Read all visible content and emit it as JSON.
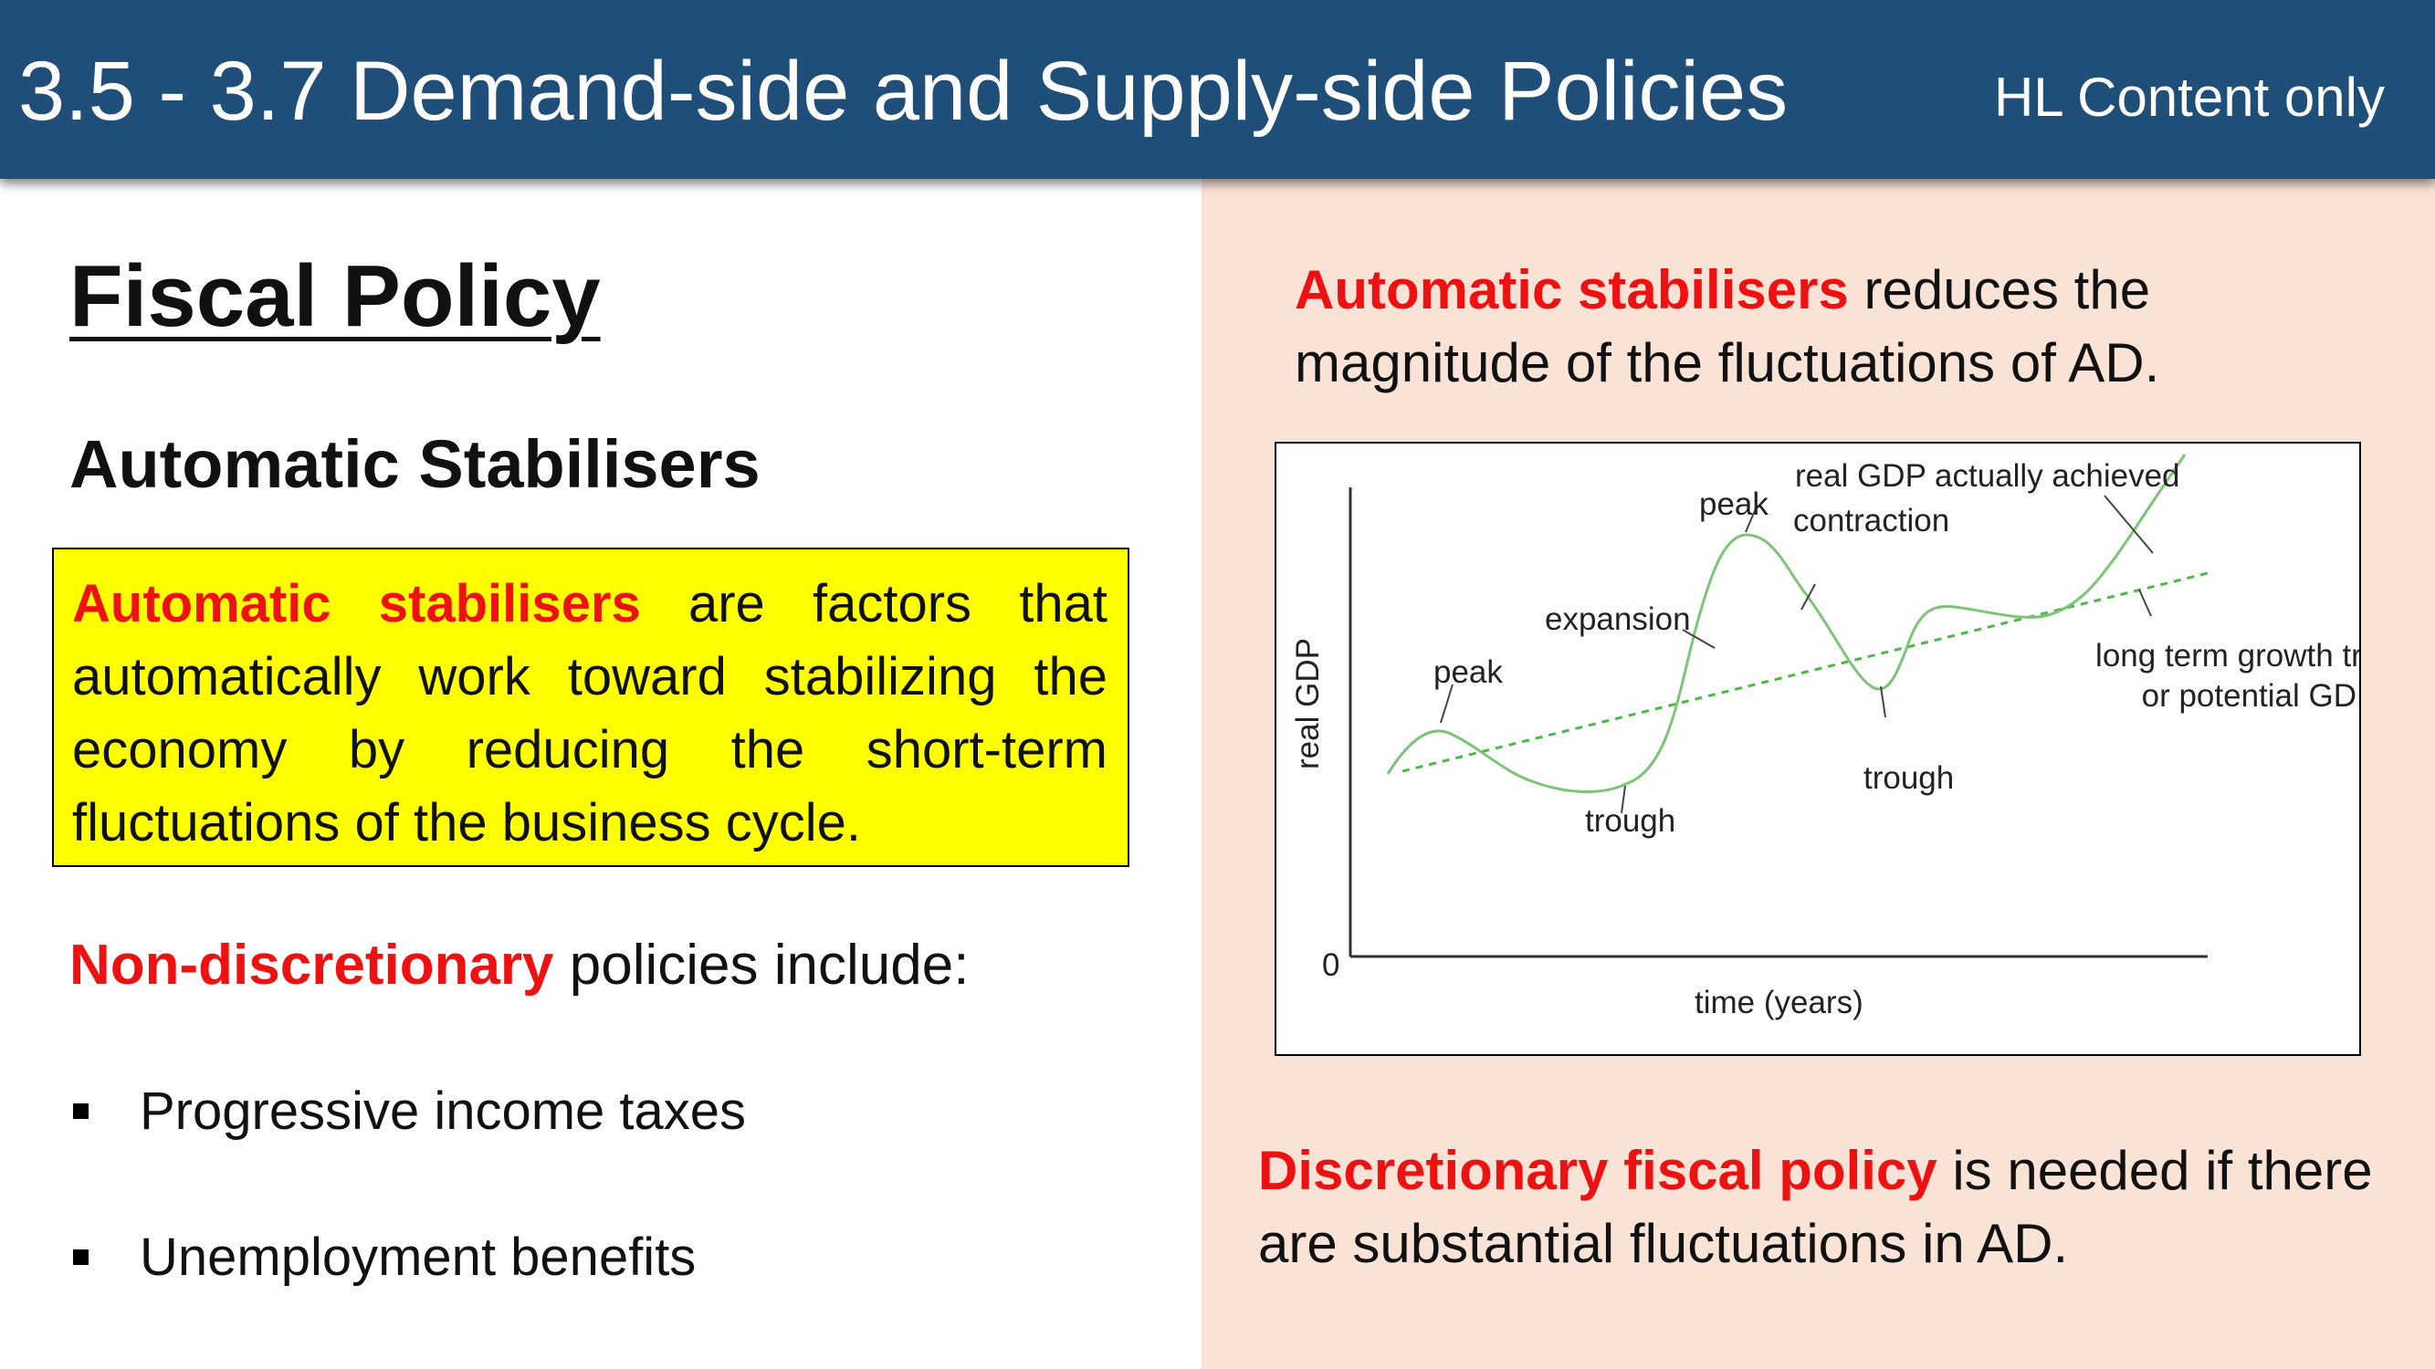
{
  "header": {
    "title": "3.5 - 3.7 Demand-side and Supply-side Policies",
    "note": "HL Content only"
  },
  "left": {
    "title": "Fiscal Policy",
    "subtitle": "Automatic Stabilisers",
    "definition": {
      "term": "Automatic stabilisers",
      "text": " are factors that automatically work toward stabilizing the economy by reducing the short-term fluctuations  of the business cycle."
    },
    "nondiscretionary": {
      "term": "Non-discretionary",
      "text": " policies include:"
    },
    "bullets": [
      "Progressive income taxes",
      "Unemployment benefits"
    ]
  },
  "right": {
    "top": {
      "term": "Automatic stabilisers",
      "text": " reduces the magnitude of the fluctuations of AD."
    },
    "bottom": {
      "term": "Discretionary fiscal policy",
      "text": " is needed if there are substantial fluctuations in AD."
    }
  },
  "diagram": {
    "y_axis_label": "real GDP",
    "x_axis_label": "time (years)",
    "origin_label": "0",
    "labels": {
      "peak1": "peak",
      "trough1": "trough",
      "expansion": "expansion",
      "peak2": "peak",
      "contraction": "contraction",
      "trough2": "trough",
      "actual_gdp": "real GDP actually achieved",
      "trend_line1": "long term growth trend,",
      "trend_line2": "or potential GDP"
    },
    "colors": {
      "actual_curve": "#7cc576",
      "trend_line": "#4db848"
    }
  }
}
